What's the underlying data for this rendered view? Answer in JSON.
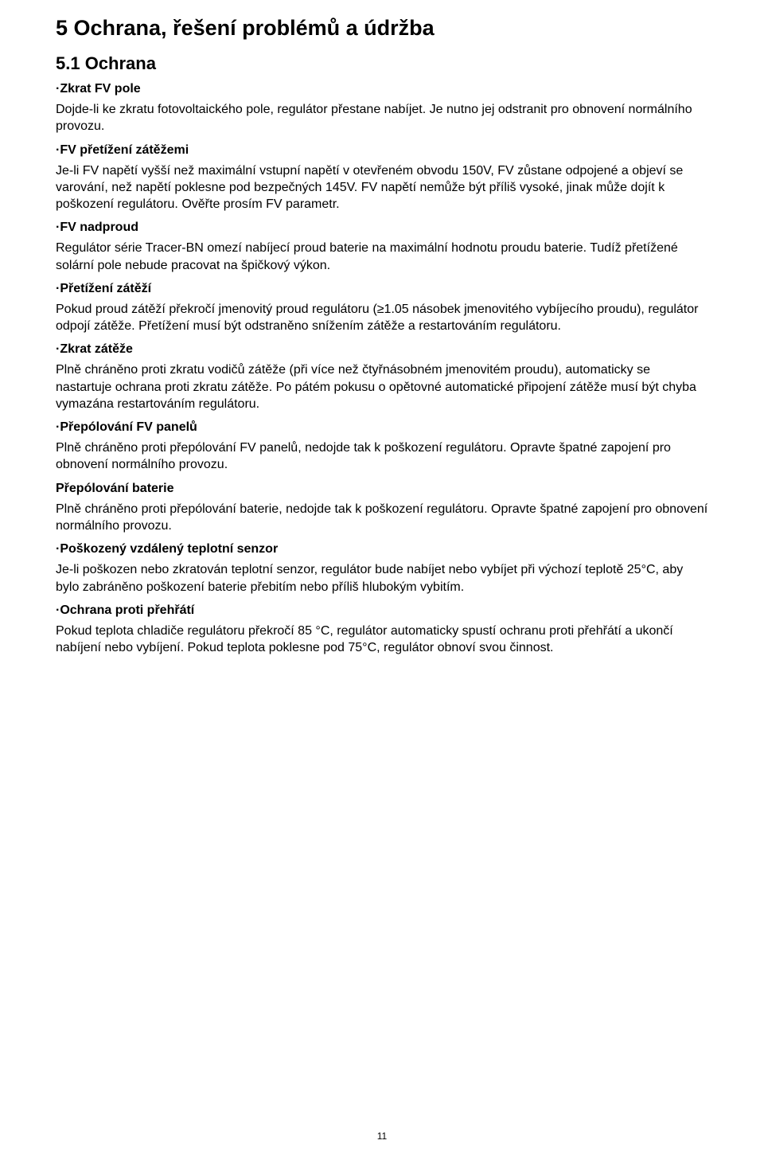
{
  "page_number": "11",
  "h1": "5 Ochrana, řešení problémů a údržba",
  "h2": "5.1 Ochrana",
  "sections": [
    {
      "heading": "·Zkrat FV pole",
      "paragraphs": [
        "Dojde-li ke zkratu fotovoltaického pole, regulátor přestane nabíjet.  Je nutno jej odstranit pro obnovení normálního provozu."
      ]
    },
    {
      "heading": "·FV přetížení zátěžemi",
      "paragraphs": [
        "Je-li FV napětí vyšší než maximální vstupní napětí v otevřeném obvodu 150V, FV zůstane odpojené a objeví se varování, než napětí poklesne pod bezpečných 145V. FV napětí nemůže být příliš vysoké, jinak může dojít k poškození regulátoru. Ověřte prosím FV parametr."
      ]
    },
    {
      "heading": "·FV nadproud",
      "paragraphs": [
        "Regulátor série Tracer-BN omezí nabíjecí proud baterie na maximální hodnotu proudu baterie. Tudíž přetížené solární pole nebude pracovat na špičkový výkon."
      ]
    },
    {
      "heading": "·Přetížení zátěží",
      "paragraphs": [
        "Pokud proud zátěží překročí jmenovitý proud regulátoru (≥1.05 násobek jmenovitého vybíjecího proudu), regulátor odpojí zátěže. Přetížení musí být odstraněno snížením zátěže a restartováním regulátoru."
      ]
    },
    {
      "heading": "·Zkrat zátěže",
      "paragraphs": [
        "Plně chráněno proti zkratu vodičů zátěže (při více než čtyřnásobném jmenovitém proudu), automaticky se nastartuje ochrana proti zkratu zátěže. Po pátém pokusu o opětovné automatické připojení zátěže musí být chyba vymazána restartováním regulátoru."
      ]
    },
    {
      "heading": "·Přepólování FV panelů",
      "paragraphs": [
        "Plně chráněno proti přepólování FV panelů, nedojde tak k poškození regulátoru. Opravte špatné zapojení pro obnovení normálního provozu."
      ]
    },
    {
      "heading": "Přepólování baterie",
      "paragraphs": [
        "Plně chráněno proti přepólování baterie, nedojde tak k poškození regulátoru. Opravte špatné zapojení pro obnovení normálního provozu."
      ]
    },
    {
      "heading": "·Poškozený vzdálený teplotní senzor",
      "paragraphs": [
        "Je-li poškozen nebo zkratován teplotní senzor, regulátor bude nabíjet nebo vybíjet při výchozí teplotě 25°C, aby bylo zabráněno poškození baterie přebitím nebo příliš hlubokým vybitím."
      ]
    },
    {
      "heading": "·Ochrana proti přehřátí",
      "paragraphs": [
        "Pokud teplota chladiče regulátoru překročí 85 °C, regulátor automaticky spustí ochranu proti přehřátí a ukončí nabíjení nebo vybíjení. Pokud teplota poklesne pod 75°C, regulátor obnoví svou činnost."
      ]
    }
  ]
}
